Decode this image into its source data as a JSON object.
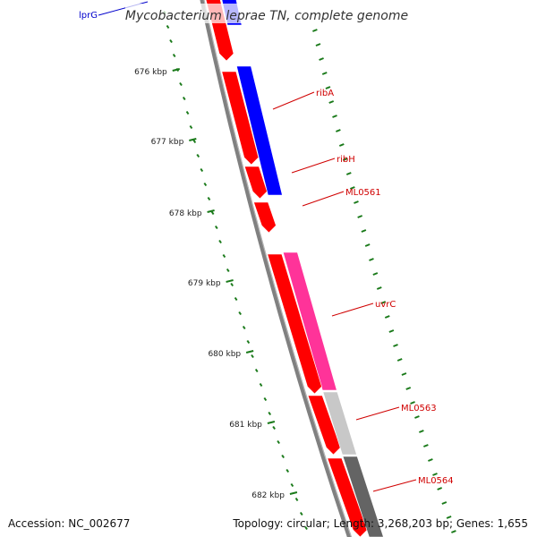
{
  "title": "Mycobacterium leprae TN, complete genome",
  "accession": "Accession: NC_002677",
  "summary": "Topology: circular; Length: 3,268,203 bp; Genes: 1,655",
  "colors": {
    "backbone": "#808080",
    "ticks": "#1a7a1a",
    "forward_gene": "#0000ff",
    "reverse_gene": "#ff0000",
    "uvrC": "#ff3399",
    "ML0563": "#c8c8c8",
    "ML0564": "#646464",
    "label_red": "#d00000",
    "label_blue": "#0000cc"
  },
  "ticks": [
    "676 kbp",
    "677 kbp",
    "678 kbp",
    "679 kbp",
    "680 kbp",
    "681 kbp",
    "682 kbp"
  ],
  "genes": [
    {
      "name": "lprG",
      "strand": "forward",
      "color": "#0000ff"
    },
    {
      "name": "ribA",
      "strand": "forward",
      "color": "#0000ff"
    },
    {
      "name": "ribH",
      "strand": "reverse",
      "color": "#ff0000"
    },
    {
      "name": "ML0561",
      "strand": "reverse",
      "color": "#ff0000"
    },
    {
      "name": "uvrC",
      "strand": "forward",
      "color": "#ff3399"
    },
    {
      "name": "ML0563",
      "strand": "forward",
      "color": "#c8c8c8"
    },
    {
      "name": "ML0564",
      "strand": "forward",
      "color": "#646464"
    }
  ]
}
